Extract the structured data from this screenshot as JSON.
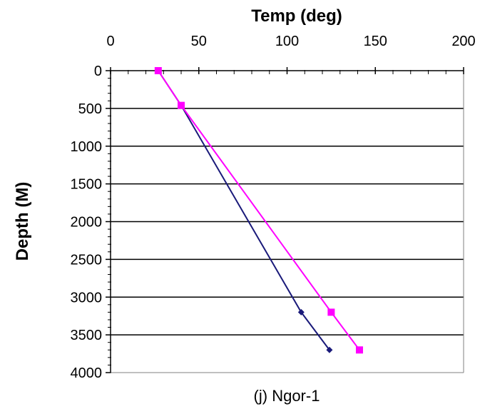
{
  "chart_data": {
    "type": "line",
    "title": "Temp (deg)",
    "xlabel": "Temp (deg)",
    "ylabel": "Depth (M)",
    "caption": "(j) Ngor-1",
    "x_axis_position": "top",
    "y_axis_inverted": true,
    "xlim": [
      0,
      200
    ],
    "ylim": [
      0,
      4000
    ],
    "x_ticks": [
      0,
      50,
      100,
      150,
      200
    ],
    "y_ticks": [
      0,
      500,
      1000,
      1500,
      2000,
      2500,
      3000,
      3500,
      4000
    ],
    "gridlines": "horizontal",
    "legend": "none",
    "series": [
      {
        "color": "#1a1a7a",
        "marker": "diamond",
        "points": [
          {
            "x": 27,
            "y": 0
          },
          {
            "x": 40,
            "y": 460
          },
          {
            "x": 108,
            "y": 3200
          },
          {
            "x": 124,
            "y": 3700
          }
        ]
      },
      {
        "color": "#ff00ff",
        "marker": "square",
        "points": [
          {
            "x": 27,
            "y": 0
          },
          {
            "x": 40,
            "y": 460
          },
          {
            "x": 125,
            "y": 3200
          },
          {
            "x": 141,
            "y": 3700
          }
        ]
      }
    ]
  }
}
